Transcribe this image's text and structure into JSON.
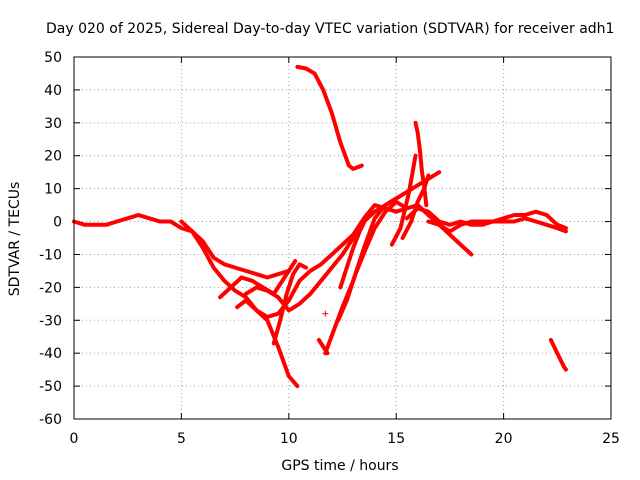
{
  "chart_data": {
    "type": "scatter",
    "title": "Day 020 of 2025, Sidereal Day-to-day VTEC variation (SDTVAR) for receiver adh1",
    "xlabel": "GPS time / hours",
    "ylabel": "SDTVAR / TECUs",
    "xlim": [
      0,
      25
    ],
    "ylim": [
      -60,
      50
    ],
    "xticks": [
      0,
      5,
      10,
      15,
      20,
      25
    ],
    "yticks": [
      -60,
      -50,
      -40,
      -30,
      -20,
      -10,
      0,
      10,
      20,
      30,
      40,
      50
    ],
    "grid": true,
    "legend": "none",
    "marker": "+",
    "color": "#ff0000",
    "series": [
      {
        "name": "s1",
        "x": [
          0,
          0.5,
          1,
          1.5,
          2,
          2.5,
          3,
          3.5,
          4,
          4.5,
          5,
          5.5,
          6,
          6.5,
          7,
          7.5,
          8,
          8.5,
          9,
          9.5,
          10
        ],
        "y": [
          0,
          -1,
          -1,
          -1,
          0,
          1,
          2,
          1,
          0,
          0,
          -2,
          -3,
          -6,
          -11,
          -13,
          -14,
          -15,
          -16,
          -17,
          -16,
          -15
        ]
      },
      {
        "name": "s2",
        "x": [
          5,
          5.5,
          6,
          6.5,
          7,
          7.5,
          8,
          8.5,
          9,
          9.5,
          10,
          10.4
        ],
        "y": [
          0,
          -3,
          -8,
          -14,
          -18,
          -21,
          -23,
          -27,
          -30,
          -38,
          -47,
          -50
        ]
      },
      {
        "name": "s3",
        "x": [
          6.8,
          7.3,
          7.8,
          8.3,
          8.8,
          9.3,
          9.8,
          10.3
        ],
        "y": [
          -23,
          -20,
          -17,
          -18,
          -20,
          -22,
          -17,
          -12
        ]
      },
      {
        "name": "s4",
        "x": [
          7.6,
          8,
          8.5,
          9,
          9.5,
          10,
          10.5,
          11,
          11.5,
          12,
          12.5,
          13,
          13.5,
          14,
          14.5,
          15,
          15.5,
          16,
          16.5,
          17,
          17.5,
          18,
          18.5
        ],
        "y": [
          -26,
          -24,
          -27,
          -29,
          -28,
          -24,
          -18,
          -15,
          -13,
          -10,
          -7,
          -4,
          1,
          5,
          4,
          3,
          4,
          5,
          2,
          -1,
          -4,
          -7,
          -10
        ]
      },
      {
        "name": "s5",
        "x": [
          8,
          8.5,
          9,
          9.5,
          10,
          10.5,
          11,
          11.5,
          12,
          12.5,
          13,
          13.5,
          14,
          14.5,
          15,
          15.5,
          16,
          16.5,
          17
        ],
        "y": [
          -22,
          -20,
          -21,
          -23,
          -27,
          -25,
          -22,
          -18,
          -14,
          -10,
          -5,
          0,
          3,
          5,
          7,
          9,
          11,
          13,
          15
        ]
      },
      {
        "name": "s6",
        "x": [
          9.3,
          9.6,
          9.9,
          10.2,
          10.5,
          10.8
        ],
        "y": [
          -37,
          -30,
          -22,
          -16,
          -13,
          -14
        ]
      },
      {
        "name": "s7",
        "x": [
          10.4,
          10.8,
          11.2,
          11.6,
          12,
          12.4,
          12.8,
          13,
          13.4
        ],
        "y": [
          47,
          46.5,
          45,
          40,
          33,
          24,
          17,
          16,
          17
        ]
      },
      {
        "name": "s8",
        "x": [
          11.7,
          12.1,
          12.5,
          13,
          13.5,
          14,
          14.5,
          15
        ],
        "y": [
          -40,
          -33,
          -26,
          -18,
          -8,
          1,
          5,
          7
        ]
      },
      {
        "name": "s9",
        "x": [
          12.3,
          12.7,
          13.1,
          13.6,
          14,
          14.5,
          15,
          15.5
        ],
        "y": [
          -30,
          -24,
          -16,
          -8,
          -2,
          3,
          6,
          4
        ]
      },
      {
        "name": "s10",
        "x": [
          12.4,
          12.7,
          13,
          13.3,
          13.6
        ],
        "y": [
          -20,
          -14,
          -8,
          -3,
          1
        ]
      },
      {
        "name": "s11",
        "x": [
          11.4,
          11.6,
          11.8
        ],
        "y": [
          -36,
          -38,
          -40
        ]
      },
      {
        "name": "s12",
        "x": [
          14.8,
          15.2,
          15.6,
          15.9
        ],
        "y": [
          -7,
          -2,
          9,
          20
        ]
      },
      {
        "name": "s13",
        "x": [
          15.3,
          15.7,
          16,
          16.3,
          16.5
        ],
        "y": [
          -5,
          0,
          6,
          10,
          14
        ]
      },
      {
        "name": "s14",
        "x": [
          15.9,
          16,
          16.1,
          16.2,
          16.3,
          16.4
        ],
        "y": [
          30,
          27,
          22,
          15,
          11,
          5
        ]
      },
      {
        "name": "s15",
        "x": [
          15.5,
          16,
          16.5,
          17,
          17.5,
          18,
          18.5,
          19,
          19.5,
          20,
          20.5,
          21,
          21.5,
          22,
          22.5,
          22.9
        ],
        "y": [
          1,
          4,
          3,
          0,
          -1,
          0,
          -1,
          -1,
          0,
          1,
          2,
          2,
          3,
          2,
          -1,
          -2
        ]
      },
      {
        "name": "s16",
        "x": [
          16.5,
          17,
          17.5,
          18,
          18.5,
          19,
          19.5,
          20,
          20.5,
          21,
          21.5,
          22,
          22.5,
          22.9
        ],
        "y": [
          0,
          -1,
          -3,
          -1,
          0,
          0,
          0,
          0,
          0,
          1,
          0,
          -1,
          -2,
          -3
        ]
      },
      {
        "name": "s17",
        "x": [
          22.2,
          22.5,
          22.8,
          22.9
        ],
        "y": [
          -36,
          -40,
          -44,
          -45
        ]
      }
    ],
    "points": [
      {
        "x": 11.7,
        "y": -28
      }
    ]
  }
}
